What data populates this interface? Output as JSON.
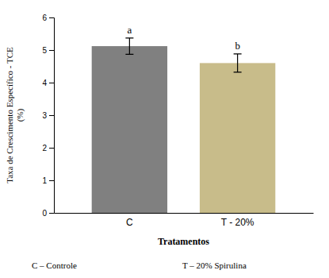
{
  "chart_data": {
    "type": "bar",
    "categories": [
      "C",
      "T - 20%"
    ],
    "values": [
      5.12,
      4.6
    ],
    "errors": [
      0.25,
      0.28
    ],
    "colors": [
      "#808080",
      "#c8bc8a"
    ],
    "significance_labels": [
      "a",
      "b"
    ],
    "xlabel": "Tratamentos",
    "ylabel": "Taxa de Crescimento Específico - TCE\n(%)",
    "ylim": [
      0,
      6
    ],
    "yticks": [
      0,
      1,
      2,
      3,
      4,
      5,
      6
    ],
    "notes": [
      "C – Controle",
      "T – 20% Spirulina"
    ]
  }
}
